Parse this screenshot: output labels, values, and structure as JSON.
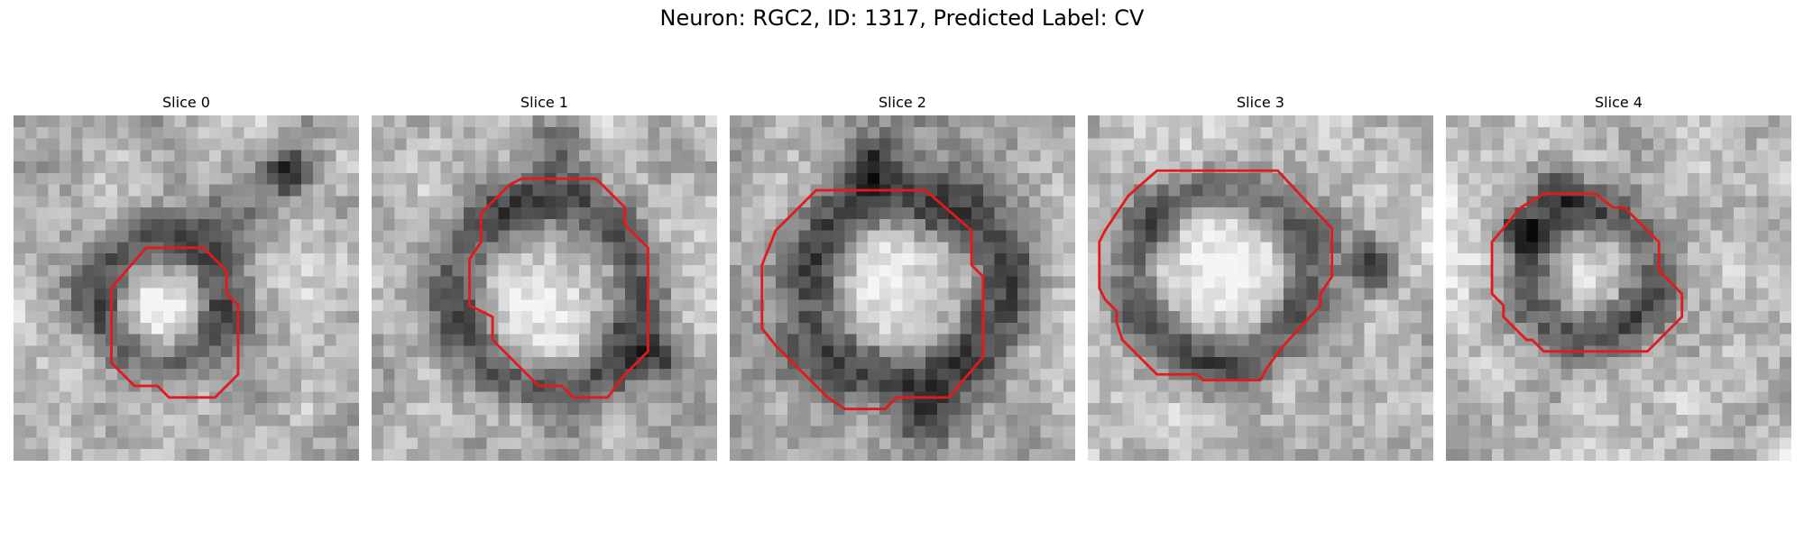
{
  "figure": {
    "title": "Neuron: RGC2, ID: 1317, Predicted Label: CV"
  },
  "colors": {
    "contour": "#e31a1c",
    "background": "#ffffff"
  },
  "slices": [
    {
      "title": "Slice 0",
      "seed": 11
    },
    {
      "title": "Slice 1",
      "seed": 23
    },
    {
      "title": "Slice 2",
      "seed": 37
    },
    {
      "title": "Slice 3",
      "seed": 51
    },
    {
      "title": "Slice 4",
      "seed": 67
    }
  ]
}
